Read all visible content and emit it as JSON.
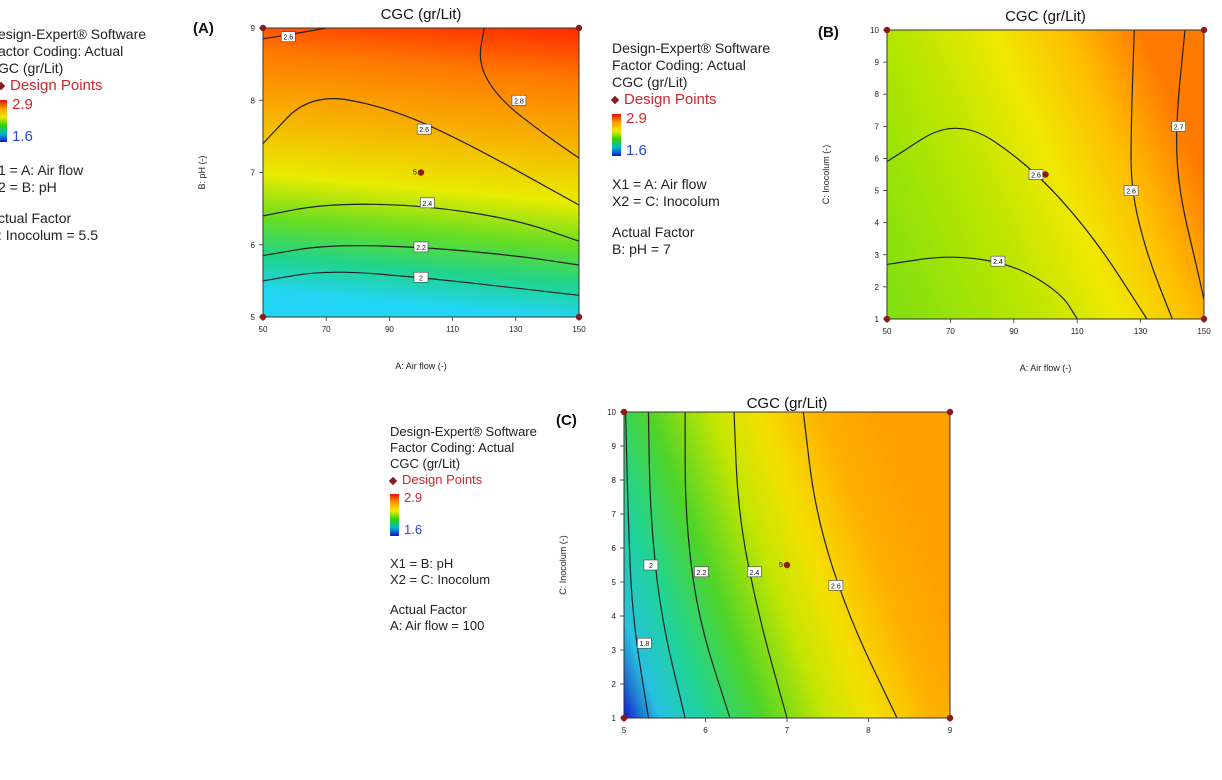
{
  "panels": [
    {
      "id": "A",
      "label": "(A)",
      "legend": {
        "software": "esign-Expert® Software",
        "coding": "actor Coding: Actual",
        "response": "GC (gr/Lit)",
        "design_points": "Design Points",
        "color_max": "2.9",
        "color_min": "1.6",
        "x1": "1 = A: Air flow",
        "x2": "2 = B: pH",
        "actual_factor_title": "ctual Factor",
        "actual_factor_value": ": Inocolum = 5.5"
      }
    },
    {
      "id": "B",
      "label": "(B)",
      "legend": {
        "software": "Design-Expert® Software",
        "coding": "Factor Coding: Actual",
        "response": "CGC (gr/Lit)",
        "design_points": "Design Points",
        "color_max": "2.9",
        "color_min": "1.6",
        "x1": "X1 = A: Air flow",
        "x2": "X2 = C: Inocolum",
        "actual_factor_title": "Actual Factor",
        "actual_factor_value": "B: pH = 7"
      }
    },
    {
      "id": "C",
      "label": "(C)",
      "legend": {
        "software": "Design-Expert® Software",
        "coding": "Factor Coding: Actual",
        "response": "CGC (gr/Lit)",
        "design_points": "Design Points",
        "color_max": "2.9",
        "color_min": "1.6",
        "x1": "X1 = B: pH",
        "x2": "X2 = C: Inocolum",
        "actual_factor_title": "Actual Factor",
        "actual_factor_value": "A: Air flow = 100"
      }
    }
  ],
  "chart_data": [
    {
      "type": "heatmap",
      "subtype": "contour",
      "title": "CGC (gr/Lit)",
      "xlabel": "A: Air flow (-)",
      "ylabel": "B: pH (-)",
      "xlim": [
        50,
        150
      ],
      "ylim": [
        5,
        9
      ],
      "xticks": [
        "50",
        "70",
        "90",
        "110",
        "130",
        "150"
      ],
      "yticks": [
        "5",
        "6",
        "7",
        "8",
        "9"
      ],
      "color_range": [
        1.6,
        2.9
      ],
      "contours": [
        {
          "level": "2",
          "points": [
            [
              50,
              5.5
            ],
            [
              70,
              5.65
            ],
            [
              100,
              5.55
            ],
            [
              130,
              5.4
            ],
            [
              150,
              5.3
            ]
          ],
          "label_at": [
            100,
            5.55
          ]
        },
        {
          "level": "2.2",
          "points": [
            [
              50,
              5.85
            ],
            [
              70,
              6.0
            ],
            [
              100,
              5.97
            ],
            [
              130,
              5.85
            ],
            [
              150,
              5.72
            ]
          ],
          "label_at": [
            100,
            5.97
          ]
        },
        {
          "level": "2.4",
          "points": [
            [
              50,
              6.4
            ],
            [
              70,
              6.57
            ],
            [
              100,
              6.55
            ],
            [
              130,
              6.35
            ],
            [
              150,
              6.05
            ]
          ],
          "label_at": [
            102,
            6.58
          ]
        },
        {
          "level": "2.6",
          "points": [
            [
              50,
              7.4
            ],
            [
              65,
              8.1
            ],
            [
              90,
              7.9
            ],
            [
              115,
              7.4
            ],
            [
              150,
              6.55
            ]
          ],
          "label_at": [
            101,
            7.6
          ]
        },
        {
          "level": "2.8",
          "points": [
            [
              120,
              9.0
            ],
            [
              118,
              8.5
            ],
            [
              125,
              8.0
            ],
            [
              140,
              7.5
            ],
            [
              150,
              7.2
            ]
          ],
          "label_at": [
            131,
            8.0
          ]
        },
        {
          "level": "2.6",
          "points": [
            [
              50,
              8.85
            ],
            [
              60,
              8.92
            ],
            [
              70,
              9.0
            ]
          ],
          "label_at": [
            58,
            8.88
          ]
        }
      ],
      "design_points": [
        {
          "x": 50,
          "y": 9
        },
        {
          "x": 150,
          "y": 9
        },
        {
          "x": 50,
          "y": 5
        },
        {
          "x": 150,
          "y": 5
        },
        {
          "x": 100,
          "y": 7,
          "label": "5"
        }
      ]
    },
    {
      "type": "heatmap",
      "subtype": "contour",
      "title": "CGC (gr/Lit)",
      "xlabel": "A: Air flow (-)",
      "ylabel": "C: Inocolum (-)",
      "xlim": [
        50,
        150
      ],
      "ylim": [
        1,
        10
      ],
      "xticks": [
        "50",
        "70",
        "90",
        "110",
        "130",
        "150"
      ],
      "yticks": [
        "1",
        "2",
        "3",
        "4",
        "5",
        "6",
        "7",
        "8",
        "9",
        "10"
      ],
      "color_range": [
        1.6,
        2.9
      ],
      "contours": [
        {
          "level": "2.4",
          "points": [
            [
              50,
              2.7
            ],
            [
              70,
              3.0
            ],
            [
              90,
              2.7
            ],
            [
              105,
              1.8
            ],
            [
              110,
              1.0
            ]
          ],
          "label_at": [
            85,
            2.8
          ]
        },
        {
          "level": "2.6",
          "points": [
            [
              50,
              5.9
            ],
            [
              72,
              7.3
            ],
            [
              95,
              5.8
            ],
            [
              115,
              3.6
            ],
            [
              132,
              1.0
            ]
          ],
          "label_at": [
            97,
            5.5
          ]
        },
        {
          "level": "2.6",
          "points": [
            [
              128,
              10.0
            ],
            [
              127,
              7.0
            ],
            [
              127,
              5.0
            ],
            [
              132,
              3.0
            ],
            [
              140,
              1.0
            ]
          ],
          "label_at": [
            127,
            5.0
          ]
        },
        {
          "level": "2.7",
          "points": [
            [
              144,
              10.0
            ],
            [
              141,
              7.0
            ],
            [
              142,
              5.0
            ],
            [
              148,
              2.5
            ],
            [
              150,
              1.6
            ]
          ],
          "label_at": [
            142,
            7.0
          ]
        }
      ],
      "design_points": [
        {
          "x": 50,
          "y": 10
        },
        {
          "x": 150,
          "y": 10
        },
        {
          "x": 50,
          "y": 1
        },
        {
          "x": 150,
          "y": 1
        },
        {
          "x": 100,
          "y": 5.5
        }
      ]
    },
    {
      "type": "heatmap",
      "subtype": "contour",
      "title": "CGC (gr/Lit)",
      "xlabel": "",
      "ylabel": "C: Inocolum (-)",
      "xlim": [
        5,
        9
      ],
      "ylim": [
        1,
        10
      ],
      "xticks": [
        "5",
        "6",
        "7",
        "8",
        "9"
      ],
      "yticks": [
        "1",
        "2",
        "3",
        "4",
        "5",
        "6",
        "7",
        "8",
        "9",
        "10"
      ],
      "color_range": [
        1.6,
        2.9
      ],
      "contours": [
        {
          "level": "1.8",
          "points": [
            [
              5.02,
              10.0
            ],
            [
              5.05,
              7.0
            ],
            [
              5.1,
              4.0
            ],
            [
              5.3,
              1.0
            ]
          ],
          "label_at": [
            5.25,
            3.2
          ]
        },
        {
          "level": "2",
          "points": [
            [
              5.3,
              10.0
            ],
            [
              5.32,
              7.0
            ],
            [
              5.45,
              4.0
            ],
            [
              5.75,
              1.0
            ]
          ],
          "label_at": [
            5.33,
            5.5
          ]
        },
        {
          "level": "2.2",
          "points": [
            [
              5.75,
              10.0
            ],
            [
              5.75,
              7.0
            ],
            [
              5.9,
              4.0
            ],
            [
              6.3,
              1.0
            ]
          ],
          "label_at": [
            5.95,
            5.3
          ]
        },
        {
          "level": "2.4",
          "points": [
            [
              6.35,
              10.0
            ],
            [
              6.4,
              7.0
            ],
            [
              6.65,
              4.0
            ],
            [
              7.0,
              1.0
            ]
          ],
          "label_at": [
            6.6,
            5.3
          ]
        },
        {
          "level": "2.6",
          "points": [
            [
              7.2,
              10.0
            ],
            [
              7.35,
              7.0
            ],
            [
              7.75,
              4.0
            ],
            [
              8.35,
              1.0
            ]
          ],
          "label_at": [
            7.6,
            4.9
          ]
        }
      ],
      "design_points": [
        {
          "x": 5,
          "y": 10
        },
        {
          "x": 9,
          "y": 10
        },
        {
          "x": 5,
          "y": 1
        },
        {
          "x": 9,
          "y": 1
        },
        {
          "x": 7,
          "y": 5.5,
          "label": "5"
        }
      ]
    }
  ]
}
